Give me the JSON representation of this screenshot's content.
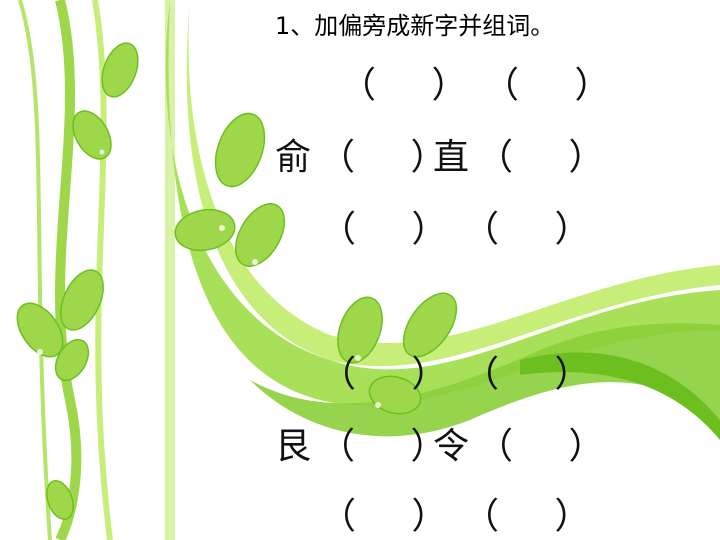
{
  "title": "1、加偏旁成新字并组词。",
  "paren": "（ ）",
  "groups": [
    {
      "base_char": "俞"
    },
    {
      "base_char": "直"
    },
    {
      "base_char": "艮"
    },
    {
      "base_char": "令"
    }
  ],
  "colors": {
    "leaf_light": "#c8ee7a",
    "leaf_mid": "#9ed84a",
    "leaf_dark": "#6cbf1e",
    "swoosh": "#a8e05a"
  }
}
